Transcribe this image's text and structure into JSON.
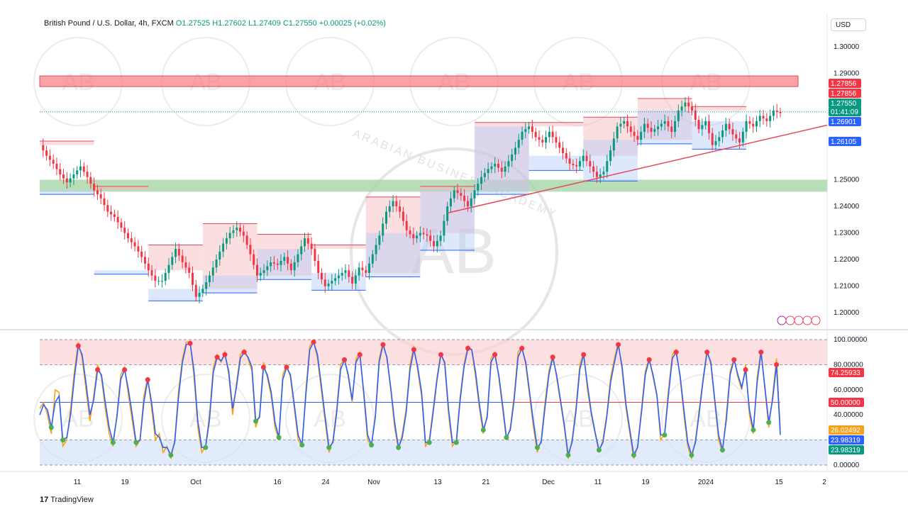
{
  "header": {
    "symbol": "British Pound / U.S. Dollar, 4h, FXCM",
    "o": "O1.27525",
    "h": "H1.27602",
    "l": "L1.27409",
    "c": "C1.27550",
    "chg": "+0.00025 (+0.02%)"
  },
  "currency": "USD",
  "watermark": {
    "text": "ARABIAN BUSINESS ACADEMY",
    "mono": "AB"
  },
  "branding": {
    "logo": "TradingView"
  },
  "colors": {
    "up": "#089981",
    "down": "#f23645",
    "stoch_k": "#f7a21b",
    "stoch_d": "#2962ff",
    "resistance": "#f77c80",
    "support": "#a5d6a7",
    "trendline": "#e5475b"
  },
  "chart_data": [
    {
      "type": "candlestick",
      "title": "British Pound / U.S. Dollar, 4h, FXCM",
      "ylim": [
        1.195,
        1.305
      ],
      "y_ticks": [
        "1.30000",
        "1.29000",
        "1.27856",
        "1.27550",
        "1.25000",
        "1.24000",
        "1.23000",
        "1.22000",
        "1.21000",
        "1.20000"
      ],
      "x_ticks": [
        "11",
        "19",
        "Oct",
        "16",
        "24",
        "Nov",
        "13",
        "21",
        "Dec",
        "11",
        "19",
        "2024",
        "15",
        "2"
      ],
      "price_labels": [
        {
          "text": "1.27856",
          "y": 1.27856,
          "color": "#f23645"
        },
        {
          "text": "1.27856",
          "y": 1.27856,
          "color": "#f23645"
        },
        {
          "text": "1.27550",
          "y": 1.2755,
          "color": "#089981"
        },
        {
          "text": "01:41:09",
          "y": 1.2755,
          "color": "#089981"
        },
        {
          "text": "1.26901",
          "y": 1.26901,
          "color": "#2962ff"
        },
        {
          "text": "1.26105",
          "y": 1.26105,
          "color": "#2962ff"
        }
      ],
      "close_path": [
        [
          0,
          1.263
        ],
        [
          2,
          1.259
        ],
        [
          4,
          1.256
        ],
        [
          6,
          1.252
        ],
        [
          8,
          1.249
        ],
        [
          10,
          1.252
        ],
        [
          12,
          1.255
        ],
        [
          14,
          1.251
        ],
        [
          16,
          1.246
        ],
        [
          18,
          1.243
        ],
        [
          20,
          1.238
        ],
        [
          22,
          1.236
        ],
        [
          24,
          1.232
        ],
        [
          26,
          1.228
        ],
        [
          28,
          1.225
        ],
        [
          30,
          1.221
        ],
        [
          32,
          1.216
        ],
        [
          34,
          1.212
        ],
        [
          36,
          1.212
        ],
        [
          38,
          1.218
        ],
        [
          40,
          1.224
        ],
        [
          42,
          1.219
        ],
        [
          44,
          1.215
        ],
        [
          46,
          1.206
        ],
        [
          48,
          1.209
        ],
        [
          50,
          1.214
        ],
        [
          52,
          1.22
        ],
        [
          54,
          1.226
        ],
        [
          56,
          1.23
        ],
        [
          58,
          1.232
        ],
        [
          60,
          1.229
        ],
        [
          62,
          1.222
        ],
        [
          64,
          1.214
        ],
        [
          66,
          1.216
        ],
        [
          68,
          1.219
        ],
        [
          70,
          1.218
        ],
        [
          72,
          1.221
        ],
        [
          74,
          1.216
        ],
        [
          76,
          1.222
        ],
        [
          78,
          1.228
        ],
        [
          80,
          1.224
        ],
        [
          82,
          1.215
        ],
        [
          84,
          1.21
        ],
        [
          86,
          1.212
        ],
        [
          88,
          1.214
        ],
        [
          90,
          1.216
        ],
        [
          92,
          1.211
        ],
        [
          94,
          1.217
        ],
        [
          96,
          1.215
        ],
        [
          98,
          1.222
        ],
        [
          100,
          1.229
        ],
        [
          102,
          1.238
        ],
        [
          104,
          1.242
        ],
        [
          106,
          1.238
        ],
        [
          108,
          1.231
        ],
        [
          110,
          1.228
        ],
        [
          112,
          1.23
        ],
        [
          114,
          1.229
        ],
        [
          116,
          1.225
        ],
        [
          118,
          1.229
        ],
        [
          120,
          1.24
        ],
        [
          122,
          1.246
        ],
        [
          124,
          1.244
        ],
        [
          126,
          1.24
        ],
        [
          128,
          1.246
        ],
        [
          130,
          1.251
        ],
        [
          132,
          1.254
        ],
        [
          134,
          1.256
        ],
        [
          136,
          1.253
        ],
        [
          138,
          1.257
        ],
        [
          140,
          1.262
        ],
        [
          142,
          1.268
        ],
        [
          144,
          1.27
        ],
        [
          146,
          1.266
        ],
        [
          148,
          1.264
        ],
        [
          150,
          1.268
        ],
        [
          152,
          1.264
        ],
        [
          154,
          1.26
        ],
        [
          156,
          1.256
        ],
        [
          158,
          1.255
        ],
        [
          160,
          1.259
        ],
        [
          162,
          1.255
        ],
        [
          164,
          1.251
        ],
        [
          166,
          1.253
        ],
        [
          168,
          1.261
        ],
        [
          170,
          1.27
        ],
        [
          172,
          1.272
        ],
        [
          174,
          1.268
        ],
        [
          176,
          1.265
        ],
        [
          178,
          1.271
        ],
        [
          180,
          1.268
        ],
        [
          182,
          1.27
        ],
        [
          184,
          1.272
        ],
        [
          186,
          1.268
        ],
        [
          188,
          1.276
        ],
        [
          190,
          1.279
        ],
        [
          192,
          1.276
        ],
        [
          194,
          1.269
        ],
        [
          196,
          1.272
        ],
        [
          198,
          1.263
        ],
        [
          200,
          1.266
        ],
        [
          202,
          1.271
        ],
        [
          204,
          1.267
        ],
        [
          206,
          1.264
        ],
        [
          208,
          1.272
        ],
        [
          210,
          1.27
        ],
        [
          212,
          1.274
        ],
        [
          214,
          1.272
        ],
        [
          216,
          1.276
        ],
        [
          218,
          1.275
        ]
      ],
      "resistance_zones": [
        [
          1.285,
          1.289
        ]
      ],
      "support_zones": [
        [
          1.2455,
          1.25
        ]
      ],
      "trendline": [
        [
          120,
          1.2375
        ],
        [
          219,
          1.269
        ]
      ],
      "last": 1.2755
    },
    {
      "type": "line",
      "title": "Stochastic",
      "ylim": [
        0,
        100
      ],
      "y_ticks": [
        "100.00000",
        "80.00000",
        "60.00000",
        "40.00000",
        "0.00000"
      ],
      "value_labels": [
        {
          "text": "74.25933",
          "y": 74.25933,
          "color": "#f23645"
        },
        {
          "text": "50.00000",
          "y": 50,
          "color": "#f23645"
        },
        {
          "text": "26.02492",
          "y": 26.02492,
          "color": "#f7a21b"
        },
        {
          "text": "23.98319",
          "y": 23.98319,
          "color": "#2962ff"
        },
        {
          "text": "23.98319",
          "y": 23.98319,
          "color": "#089981"
        }
      ],
      "bands": {
        "upper": [
          80,
          100
        ],
        "lower": [
          0,
          20
        ],
        "mid": 50
      },
      "series": [
        {
          "values": [
            45,
            50,
            40,
            25,
            60,
            58,
            15,
            20,
            45,
            75,
            98,
            85,
            60,
            35,
            55,
            80,
            70,
            45,
            25,
            15,
            40,
            72,
            78,
            55,
            35,
            15,
            20,
            55,
            70,
            45,
            20,
            25,
            10,
            15,
            5,
            20,
            60,
            85,
            98,
            98,
            70,
            30,
            10,
            15,
            40,
            78,
            88,
            82,
            90,
            72,
            40,
            65,
            88,
            92,
            85,
            75,
            30,
            40,
            82,
            70,
            55,
            30,
            20,
            72,
            80,
            70,
            45,
            20,
            15,
            60,
            95,
            99,
            85,
            60,
            35,
            10,
            20,
            45,
            80,
            85,
            70,
            50,
            85,
            90,
            55,
            20,
            15,
            40,
            85,
            98,
            85,
            60,
            30,
            12,
            25,
            45,
            80,
            95,
            75,
            55,
            15,
            20,
            45,
            70,
            90,
            80,
            40,
            15,
            20,
            55,
            80,
            95,
            92,
            70,
            45,
            25,
            40,
            85,
            90,
            70,
            45,
            20,
            30,
            55,
            90,
            95,
            80,
            55,
            30,
            10,
            20,
            50,
            75,
            88,
            70,
            50,
            30,
            5,
            20,
            45,
            80,
            90,
            60,
            40,
            25,
            10,
            20,
            40,
            70,
            85,
            98,
            75,
            45,
            25,
            5,
            15,
            45,
            75,
            85,
            70,
            55,
            20,
            25,
            60,
            88,
            92,
            70,
            40,
            15,
            5,
            20,
            45,
            70,
            92,
            80,
            50,
            20,
            10,
            40,
            75,
            85,
            70,
            60,
            80,
            40,
            25,
            70,
            92,
            60,
            30,
            55,
            85,
            28
          ]
        },
        {
          "values": [
            40,
            48,
            44,
            30,
            50,
            55,
            20,
            22,
            40,
            70,
            95,
            88,
            65,
            40,
            52,
            76,
            72,
            50,
            30,
            18,
            38,
            68,
            76,
            60,
            40,
            18,
            20,
            50,
            68,
            50,
            25,
            22,
            14,
            14,
            8,
            18,
            55,
            82,
            96,
            97,
            75,
            35,
            14,
            14,
            36,
            74,
            86,
            83,
            88,
            75,
            45,
            62,
            85,
            90,
            86,
            78,
            35,
            38,
            78,
            72,
            58,
            34,
            22,
            68,
            78,
            72,
            48,
            24,
            16,
            56,
            92,
            98,
            88,
            64,
            38,
            14,
            18,
            42,
            76,
            84,
            72,
            52,
            82,
            88,
            58,
            24,
            16,
            38,
            82,
            96,
            86,
            62,
            34,
            14,
            22,
            42,
            76,
            92,
            78,
            58,
            18,
            18,
            42,
            68,
            88,
            82,
            44,
            18,
            18,
            52,
            78,
            93,
            92,
            74,
            48,
            28,
            38,
            82,
            88,
            72,
            48,
            22,
            28,
            52,
            86,
            93,
            82,
            58,
            34,
            14,
            18,
            46,
            72,
            86,
            72,
            52,
            32,
            8,
            18,
            42,
            76,
            88,
            64,
            42,
            26,
            12,
            18,
            38,
            66,
            82,
            96,
            78,
            48,
            28,
            8,
            14,
            42,
            72,
            84,
            72,
            56,
            24,
            24,
            56,
            85,
            90,
            72,
            44,
            18,
            8,
            18,
            42,
            68,
            90,
            82,
            52,
            24,
            12,
            36,
            72,
            84,
            72,
            62,
            76,
            44,
            28,
            66,
            90,
            62,
            34,
            52,
            80,
            24
          ]
        }
      ]
    }
  ]
}
